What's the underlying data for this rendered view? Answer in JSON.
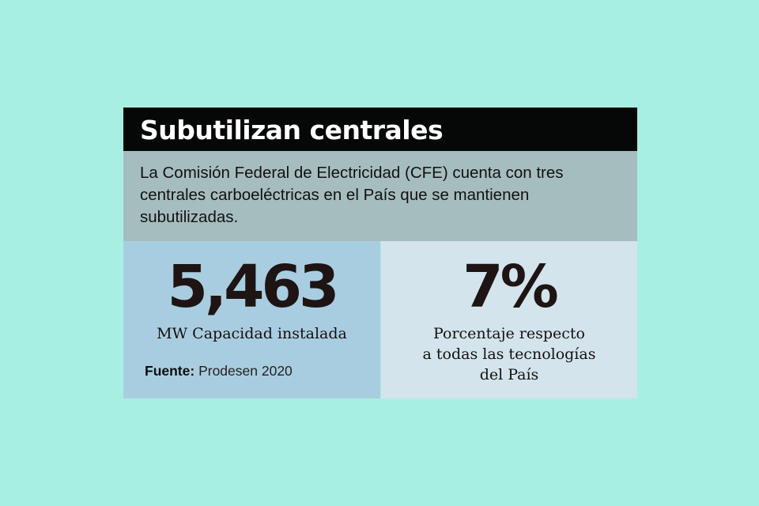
{
  "header": {
    "title": "Subutilizan centrales"
  },
  "intro": {
    "text": "La Comisión Federal de Electricidad (CFE) cuenta con tres centrales carboeléctricas en el País que se mantienen subutilizadas."
  },
  "stats": {
    "capacity": {
      "value": "5,463",
      "caption": "MW Capacidad instalada"
    },
    "percentage": {
      "value": "7%",
      "caption_lines": [
        "Porcentaje respecto",
        "a todas las tecnologías",
        "del País"
      ]
    }
  },
  "source": {
    "label": "Fuente:",
    "value": "Prodesen 2020"
  },
  "colors": {
    "background": "#a8efe3",
    "header": "#050807",
    "intro": "#a6bdbf",
    "panel_left": "#a9cde0",
    "panel_right": "#d3e4ec"
  }
}
